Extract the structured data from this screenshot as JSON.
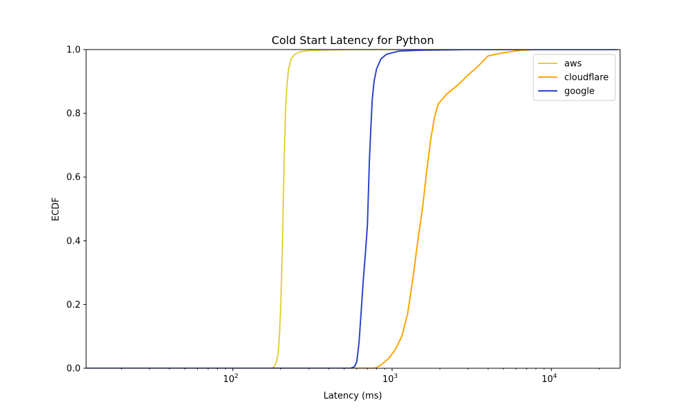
{
  "chart_data": {
    "type": "line",
    "title": "Cold Start Latency for Python",
    "xlabel": "Latency (ms)",
    "ylabel": "ECDF",
    "xscale": "log",
    "xlim": [
      12,
      27000
    ],
    "ylim": [
      0,
      1
    ],
    "x_ticks": [
      {
        "value": 100,
        "base": "10",
        "exp": "2"
      },
      {
        "value": 1000,
        "base": "10",
        "exp": "3"
      },
      {
        "value": 10000,
        "base": "10",
        "exp": "4"
      }
    ],
    "y_ticks": [
      "0.0",
      "0.2",
      "0.4",
      "0.6",
      "0.8",
      "1.0"
    ],
    "grid": false,
    "legend_position": "top-right",
    "series": [
      {
        "name": "aws",
        "color": "#dfd040",
        "points": [
          [
            12,
            0.0
          ],
          [
            175,
            0.0
          ],
          [
            182,
            0.005
          ],
          [
            188,
            0.02
          ],
          [
            193,
            0.05
          ],
          [
            197,
            0.12
          ],
          [
            200,
            0.2
          ],
          [
            204,
            0.35
          ],
          [
            207,
            0.5
          ],
          [
            210,
            0.65
          ],
          [
            214,
            0.8
          ],
          [
            218,
            0.88
          ],
          [
            224,
            0.94
          ],
          [
            232,
            0.97
          ],
          [
            245,
            0.985
          ],
          [
            265,
            0.993
          ],
          [
            300,
            0.997
          ],
          [
            400,
            0.999
          ],
          [
            600,
            1.0
          ],
          [
            26000,
            1.0
          ]
        ]
      },
      {
        "name": "cloudflare",
        "color": "#ffa500",
        "points": [
          [
            12,
            0.0
          ],
          [
            550,
            0.0
          ],
          [
            780,
            0.0
          ],
          [
            850,
            0.01
          ],
          [
            950,
            0.03
          ],
          [
            1050,
            0.06
          ],
          [
            1150,
            0.1
          ],
          [
            1250,
            0.17
          ],
          [
            1350,
            0.28
          ],
          [
            1450,
            0.4
          ],
          [
            1550,
            0.5
          ],
          [
            1650,
            0.62
          ],
          [
            1750,
            0.72
          ],
          [
            1850,
            0.79
          ],
          [
            1950,
            0.83
          ],
          [
            2200,
            0.86
          ],
          [
            2600,
            0.89
          ],
          [
            3000,
            0.92
          ],
          [
            3500,
            0.95
          ],
          [
            4000,
            0.98
          ],
          [
            5000,
            0.99
          ],
          [
            6500,
            0.998
          ],
          [
            8000,
            1.0
          ],
          [
            26000,
            1.0
          ]
        ]
      },
      {
        "name": "google",
        "color": "#2b44c8",
        "points": [
          [
            12,
            0.0
          ],
          [
            550,
            0.0
          ],
          [
            580,
            0.005
          ],
          [
            600,
            0.02
          ],
          [
            620,
            0.08
          ],
          [
            640,
            0.18
          ],
          [
            660,
            0.28
          ],
          [
            680,
            0.36
          ],
          [
            700,
            0.45
          ],
          [
            710,
            0.55
          ],
          [
            720,
            0.65
          ],
          [
            735,
            0.75
          ],
          [
            750,
            0.84
          ],
          [
            770,
            0.9
          ],
          [
            800,
            0.94
          ],
          [
            850,
            0.97
          ],
          [
            920,
            0.985
          ],
          [
            1100,
            0.995
          ],
          [
            1500,
            0.998
          ],
          [
            3000,
            1.0
          ],
          [
            26000,
            1.0
          ]
        ]
      }
    ]
  }
}
